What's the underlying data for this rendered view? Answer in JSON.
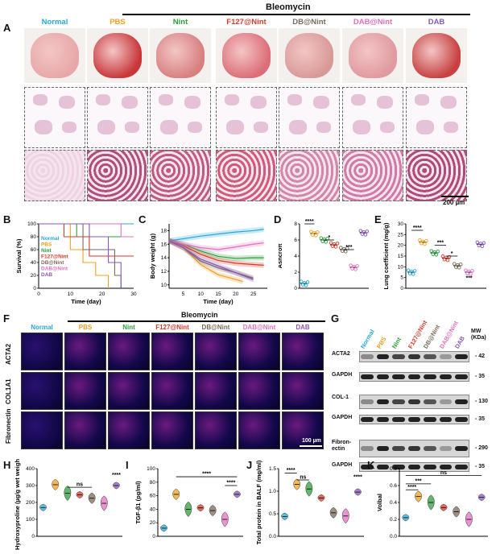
{
  "groups": [
    {
      "name": "Normal",
      "color": "#29a8d6"
    },
    {
      "name": "PBS",
      "color": "#f0a020"
    },
    {
      "name": "Nint",
      "color": "#2e9e3c"
    },
    {
      "name": "F127@Nint",
      "color": "#d83a2a"
    },
    {
      "name": "DB@Nint",
      "color": "#7a6a5a"
    },
    {
      "name": "DAB@Nint",
      "color": "#e070c0"
    },
    {
      "name": "DAB",
      "color": "#8a58b8"
    }
  ],
  "bleomycin_label": "Bleomycin",
  "panels": {
    "A": "A",
    "B": "B",
    "C": "C",
    "D": "D",
    "E": "E",
    "F": "F",
    "G": "G",
    "H": "H",
    "I": "I",
    "J": "J",
    "K": "K"
  },
  "scale_bar_a": "200 µm",
  "scale_bar_f": "100 µm",
  "if_rows": [
    "ACTA2",
    "COL1A1",
    "Fibronectin"
  ],
  "western": {
    "rows": [
      "ACTA2",
      "GAPDH",
      "COL-1",
      "GAPDH",
      "Fibron-ectin",
      "GAPDH"
    ],
    "mw_header": "MW (KDa)",
    "mw": [
      "42",
      "35",
      "130",
      "35",
      "290",
      "35"
    ]
  },
  "chart_data": [
    {
      "panel": "B",
      "type": "line",
      "xlabel": "Time (day)",
      "ylabel": "Survival (%)",
      "xticks": [
        "0",
        "10",
        "20",
        "30"
      ],
      "yticks": [
        "0",
        "20",
        "40",
        "60",
        "80",
        "100"
      ],
      "legend": [
        "Normal",
        "PBS",
        "Nint",
        "F127@Nint",
        "DB@Nint",
        "DAB@Nint",
        "DAB"
      ]
    },
    {
      "panel": "C",
      "type": "line",
      "xlabel": "Time (day)",
      "ylabel": "Body weight (g)",
      "xticks": [
        "5",
        "10",
        "15",
        "20",
        "25"
      ],
      "yticks": [
        "10",
        "12",
        "14",
        "16",
        "18"
      ],
      "series": [
        {
          "name": "Normal",
          "x": [
            1,
            5,
            10,
            15,
            20,
            25,
            28
          ],
          "y": [
            16.5,
            16.8,
            17.2,
            17.5,
            17.8,
            18.0,
            18.2
          ]
        },
        {
          "name": "PBS",
          "x": [
            1,
            5,
            10,
            15,
            20,
            22
          ],
          "y": [
            16.5,
            15.5,
            13.0,
            11.5,
            10.8,
            10.5
          ]
        },
        {
          "name": "Nint",
          "x": [
            1,
            5,
            10,
            15,
            20,
            25,
            28
          ],
          "y": [
            16.5,
            16.0,
            15.0,
            14.2,
            13.9,
            14.0,
            14.0
          ]
        },
        {
          "name": "F127@Nint",
          "x": [
            1,
            5,
            10,
            15,
            20,
            25,
            28
          ],
          "y": [
            16.5,
            15.8,
            14.5,
            13.6,
            13.2,
            13.0,
            12.9
          ]
        },
        {
          "name": "DB@Nint",
          "x": [
            1,
            5,
            10,
            15,
            20,
            25
          ],
          "y": [
            16.5,
            15.5,
            13.5,
            12.5,
            11.8,
            11.0
          ]
        },
        {
          "name": "DAB@Nint",
          "x": [
            1,
            5,
            10,
            15,
            20,
            25,
            28
          ],
          "y": [
            16.5,
            16.0,
            15.5,
            15.2,
            15.6,
            16.0,
            16.2
          ]
        },
        {
          "name": "DAB",
          "x": [
            1,
            5,
            10,
            15,
            20,
            25
          ],
          "y": [
            16.5,
            15.5,
            13.8,
            12.8,
            11.8,
            10.8
          ]
        }
      ]
    },
    {
      "panel": "D",
      "type": "scatter",
      "ylabel": "Ashcroft",
      "yticks": [
        "0",
        "2",
        "4",
        "6",
        "8"
      ],
      "ylim": [
        0,
        8
      ],
      "values": [
        0.6,
        6.8,
        6.0,
        5.4,
        4.8,
        2.6,
        6.9
      ],
      "annotations": [
        "****",
        "*",
        "***"
      ]
    },
    {
      "panel": "E",
      "type": "scatter",
      "ylabel": "Lung coefficient (mg/g)",
      "yticks": [
        "0",
        "5",
        "10",
        "15",
        "20",
        "25",
        "30"
      ],
      "ylim": [
        0,
        30
      ],
      "values": [
        7.5,
        21.5,
        16.5,
        14.0,
        10.5,
        7.5,
        20.5
      ],
      "annotations": [
        "****",
        "***",
        "*",
        "***"
      ]
    },
    {
      "panel": "H",
      "type": "violin",
      "ylabel": "Hydroxyproline (µg/g wet weight)",
      "yticks": [
        "0",
        "100",
        "200",
        "300",
        "400"
      ],
      "ylim": [
        0,
        400
      ],
      "values": [
        170,
        305,
        255,
        245,
        225,
        195,
        300
      ],
      "annotations": [
        "ns",
        "****"
      ]
    },
    {
      "panel": "I",
      "type": "violin",
      "ylabel": "TGF-β1 (pg/ml)",
      "yticks": [
        "0",
        "20",
        "40",
        "60",
        "80",
        "100"
      ],
      "ylim": [
        0,
        100
      ],
      "values": [
        12,
        62,
        40,
        42,
        38,
        25,
        62
      ],
      "annotations": [
        "****",
        "****"
      ]
    },
    {
      "panel": "J",
      "type": "violin",
      "ylabel": "Total protein in BALF (mg/ml)",
      "yticks": [
        "0.0",
        "0.5",
        "1.0",
        "1.5"
      ],
      "ylim": [
        0,
        1.5
      ],
      "values": [
        0.44,
        1.15,
        1.05,
        0.85,
        0.52,
        0.45,
        0.98
      ],
      "annotations": [
        "****",
        "ns",
        "****"
      ]
    },
    {
      "panel": "K",
      "type": "violin",
      "ylabel": "Volbal",
      "yticks": [
        "0.0",
        "0.2",
        "0.4",
        "0.6",
        "0.8"
      ],
      "ylim": [
        0,
        0.8
      ],
      "values": [
        0.22,
        0.47,
        0.4,
        0.34,
        0.29,
        0.2,
        0.46
      ],
      "annotations": [
        "****",
        "***",
        "ns"
      ]
    }
  ]
}
